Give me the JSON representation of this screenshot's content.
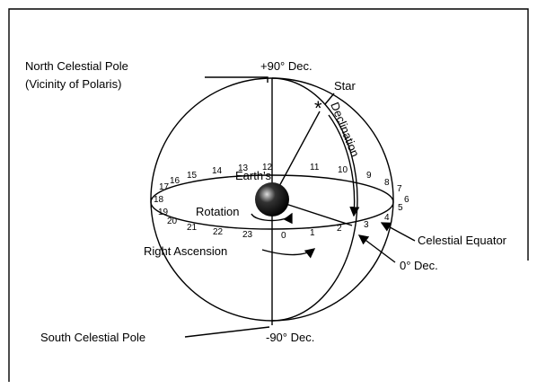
{
  "labels": {
    "north_pole": "North Celestial Pole",
    "north_pole_note": "(Vicinity of Polaris)",
    "plus90": "+90° Dec.",
    "star": "Star",
    "declination": "Declination",
    "earth_line1": "Earth's",
    "earth_line2": "Rotation",
    "celestial_equator": "Celestial Equator",
    "zero_dec": "0° Dec.",
    "right_ascension": "Right Ascension",
    "south_pole": "South Celestial Pole",
    "minus90": "-90° Dec."
  },
  "hours": [
    0,
    1,
    2,
    3,
    4,
    5,
    6,
    7,
    8,
    9,
    10,
    11,
    12,
    13,
    14,
    15,
    16,
    17,
    18,
    19,
    20,
    21,
    22,
    23
  ]
}
